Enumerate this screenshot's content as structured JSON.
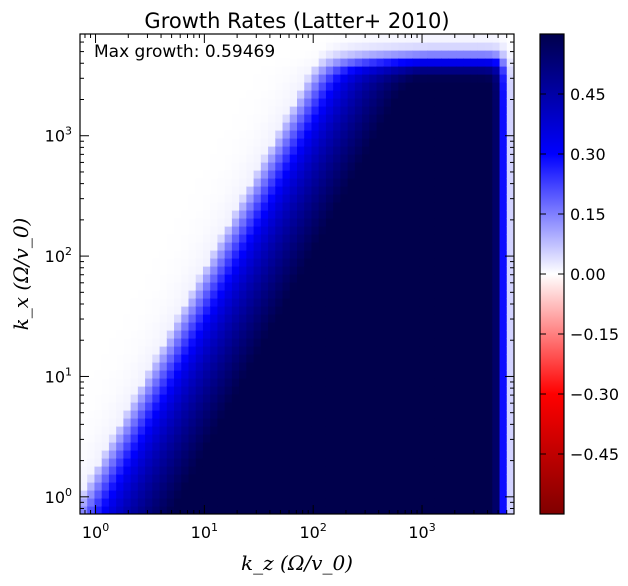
{
  "chart_data": {
    "type": "heatmap",
    "title": "Growth Rates (Latter+ 2010)",
    "annotation_prefix": "Max growth: ",
    "max_growth": "0.59469",
    "xlabel": "k_z (Ω/v_0)",
    "ylabel": "k_x (Ω/v_0)",
    "xscale": "log",
    "yscale": "log",
    "xlim": [
      0.72,
      7000
    ],
    "ylim": [
      0.72,
      7000
    ],
    "x_tick_values": [
      1,
      10,
      100,
      1000
    ],
    "y_tick_values": [
      1,
      10,
      100,
      1000
    ],
    "x_tick_labels": [
      {
        "base": "10",
        "exp": "0"
      },
      {
        "base": "10",
        "exp": "1"
      },
      {
        "base": "10",
        "exp": "2"
      },
      {
        "base": "10",
        "exp": "3"
      }
    ],
    "y_tick_labels": [
      {
        "base": "10",
        "exp": "0"
      },
      {
        "base": "10",
        "exp": "1"
      },
      {
        "base": "10",
        "exp": "2"
      },
      {
        "base": "10",
        "exp": "3"
      }
    ],
    "colormap": "seismic_r",
    "colorbar": {
      "range": [
        -0.6,
        0.6
      ],
      "ticks": [
        0.45,
        0.3,
        0.15,
        0.0,
        -0.15,
        -0.3,
        -0.45
      ],
      "tick_labels": [
        "0.45",
        "0.30",
        "0.15",
        "0.00",
        "−0.15",
        "−0.30",
        "−0.45"
      ]
    },
    "grid": false,
    "colors": {
      "high": "#00004c",
      "mid_high": "#0000ff",
      "zero": "#ffffff",
      "mid_low": "#ff0000",
      "low": "#800000"
    }
  }
}
